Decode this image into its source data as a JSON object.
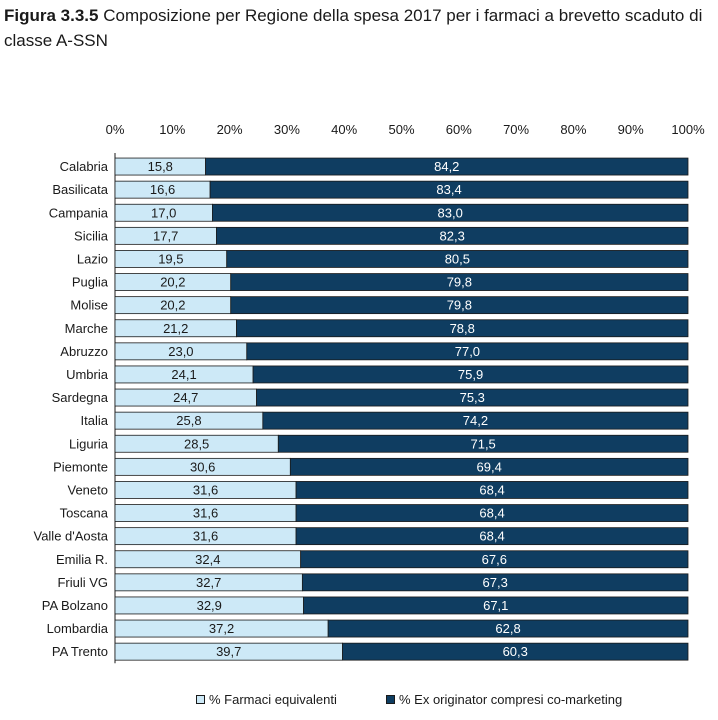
{
  "figure": {
    "number": "Figura 3.3.5",
    "caption": "Composizione per Regione della spesa 2017 per i farmaci a brevetto scaduto di classe A-SSN"
  },
  "colors": {
    "series1": "#cde9f7",
    "series2": "#0f3d61",
    "border": "#1a1a1a"
  },
  "chart_data": {
    "type": "bar",
    "orientation": "horizontal",
    "stacked": true,
    "percent_stacked": true,
    "categories": [
      "Calabria",
      "Basilicata",
      "Campania",
      "Sicilia",
      "Lazio",
      "Puglia",
      "Molise",
      "Marche",
      "Abruzzo",
      "Umbria",
      "Sardegna",
      "Italia",
      "Liguria",
      "Piemonte",
      "Veneto",
      "Toscana",
      "Valle d'Aosta",
      "Emilia R.",
      "Friuli VG",
      "PA Bolzano",
      "Lombardia",
      "PA Trento"
    ],
    "series": [
      {
        "name": "% Farmaci equivalenti",
        "values": [
          15.8,
          16.6,
          17.0,
          17.7,
          19.5,
          20.2,
          20.2,
          21.2,
          23.0,
          24.1,
          24.7,
          25.8,
          28.5,
          30.6,
          31.6,
          31.6,
          31.6,
          32.4,
          32.7,
          32.9,
          37.2,
          39.7
        ],
        "labels": [
          "15,8",
          "16,6",
          "17,0",
          "17,7",
          "19,5",
          "20,2",
          "20,2",
          "21,2",
          "23,0",
          "24,1",
          "24,7",
          "25,8",
          "28,5",
          "30,6",
          "31,6",
          "31,6",
          "31,6",
          "32,4",
          "32,7",
          "32,9",
          "37,2",
          "39,7"
        ]
      },
      {
        "name": "% Ex originator compresi co-marketing",
        "values": [
          84.2,
          83.4,
          83.0,
          82.3,
          80.5,
          79.8,
          79.8,
          78.8,
          77.0,
          75.9,
          75.3,
          74.2,
          71.5,
          69.4,
          68.4,
          68.4,
          68.4,
          67.6,
          67.3,
          67.1,
          62.8,
          60.3
        ],
        "labels": [
          "84,2",
          "83,4",
          "83,0",
          "82,3",
          "80,5",
          "79,8",
          "79,8",
          "78,8",
          "77,0",
          "75,9",
          "75,3",
          "74,2",
          "71,5",
          "69,4",
          "68,4",
          "68,4",
          "68,4",
          "67,6",
          "67,3",
          "67,1",
          "62,8",
          "60,3"
        ]
      }
    ],
    "x_ticks": [
      "0%",
      "10%",
      "20%",
      "30%",
      "40%",
      "50%",
      "60%",
      "70%",
      "80%",
      "90%",
      "100%"
    ],
    "xlim": [
      0,
      100
    ],
    "xaxis_position": "top",
    "grid": false,
    "legend_position": "bottom"
  }
}
